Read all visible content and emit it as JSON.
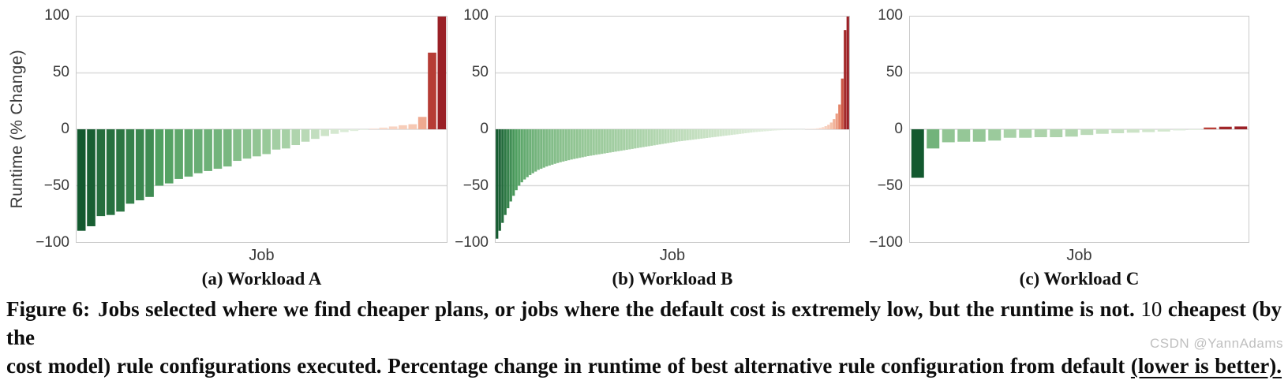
{
  "figure": {
    "y_axis_label": "Runtime (% Change)",
    "x_axis_label": "Job",
    "y_ticks": [
      {
        "value": 100,
        "label": "100"
      },
      {
        "value": 50,
        "label": "50"
      },
      {
        "value": 0,
        "label": "0"
      },
      {
        "value": -50,
        "label": "−50"
      },
      {
        "value": -100,
        "label": "−100"
      }
    ]
  },
  "caption": {
    "label": "Figure 6:",
    "line1_a": "Jobs selected where we find cheaper plans, or jobs where the default cost is extremely low, but the runtime is not. ",
    "line1_num": "10",
    "line1_b": " cheapest (by the",
    "line2_prefix": "cost model) rule configurations executed. Percentage change in runtime of best alternative rule configuration from default ",
    "line2_underlined": "(lower is better)."
  },
  "watermark": "CSDN @YannAdams",
  "colors": {
    "axis_text": "#3a3a3a",
    "grid": "#d9d9d9",
    "frame": "#c9c9c9",
    "caption_text": "#0d0d0d",
    "watermark": "#b9b9b9",
    "color_gamma": 0.5,
    "green_stops": [
      "#f4f9f2",
      "#cfe5ca",
      "#97c898",
      "#4f9f60",
      "#13592f"
    ],
    "red_stops": [
      "#fdf4ef",
      "#f5c0a8",
      "#e27b5f",
      "#c2483c",
      "#9a2026"
    ]
  },
  "chart_data": [
    {
      "type": "bar",
      "title": "(a) Workload A",
      "xlabel": "Job",
      "ylabel": "Runtime (% Change)",
      "ylim": [
        -100,
        100
      ],
      "yticks": [
        100,
        50,
        0,
        -50,
        -100
      ],
      "grid": true,
      "legend": "none",
      "bar_gap": 0.14,
      "values": [
        -90,
        -86,
        -77,
        -76,
        -73,
        -66,
        -63,
        -60,
        -50,
        -48,
        -44,
        -42,
        -39,
        -37,
        -35,
        -33,
        -28,
        -26,
        -24,
        -22,
        -18,
        -17,
        -14,
        -11,
        -8.5,
        -6,
        -4,
        -2.5,
        -1.5,
        -0.7,
        0.8,
        1.5,
        2.5,
        3.6,
        4.5,
        11,
        68,
        100
      ]
    },
    {
      "type": "bar",
      "title": "(b) Workload B",
      "xlabel": "Job",
      "ylabel": "Runtime (% Change)",
      "ylim": [
        -100,
        100
      ],
      "yticks": [
        100,
        50,
        0,
        -50,
        -100
      ],
      "grid": true,
      "legend": "none",
      "bar_gap": 0.08,
      "values": [
        -97,
        -90,
        -83,
        -76,
        -70,
        -64,
        -59,
        -54,
        -50,
        -47,
        -44.5,
        -42.5,
        -40.5,
        -39,
        -37.5,
        -36,
        -35,
        -34,
        -33,
        -32.2,
        -31.4,
        -30.6,
        -29.9,
        -29.2,
        -28.6,
        -28,
        -27.4,
        -26.8,
        -26.3,
        -25.8,
        -25.3,
        -24.8,
        -24.3,
        -23.8,
        -23.4,
        -23,
        -22.6,
        -22.2,
        -21.8,
        -21.4,
        -21,
        -20.6,
        -20.2,
        -19.8,
        -19.4,
        -19,
        -18.6,
        -18.2,
        -17.8,
        -17.4,
        -17,
        -16.6,
        -16.2,
        -15.8,
        -15.4,
        -15,
        -14.6,
        -14.2,
        -13.8,
        -13.4,
        -13,
        -12.6,
        -12.2,
        -11.8,
        -11.4,
        -11,
        -10.7,
        -10.4,
        -10.1,
        -9.8,
        -9.5,
        -9.2,
        -8.9,
        -8.6,
        -8.3,
        -8,
        -7.7,
        -7.4,
        -7.1,
        -6.8,
        -6.5,
        -6.2,
        -5.9,
        -5.6,
        -5.3,
        -5,
        -4.7,
        -4.4,
        -4.1,
        -3.8,
        -3.5,
        -3.2,
        -2.9,
        -2.6,
        -2.4,
        -2.2,
        -2,
        -1.8,
        -1.6,
        -1.4,
        -1.2,
        -1.05,
        -0.9,
        -0.8,
        -0.7,
        -0.6,
        -0.5,
        -0.4,
        -0.3,
        -0.2,
        -0.12,
        -0.06,
        0.1,
        0.2,
        0.4,
        0.6,
        0.9,
        1.3,
        1.9,
        2.8,
        4,
        6,
        9,
        14,
        22,
        45,
        88,
        100
      ]
    },
    {
      "type": "bar",
      "title": "(c) Workload C",
      "xlabel": "Job",
      "ylabel": "Runtime (% Change)",
      "ylim": [
        -100,
        100
      ],
      "yticks": [
        100,
        50,
        0,
        -50,
        -100
      ],
      "grid": true,
      "legend": "none",
      "bar_gap": 0.18,
      "values": [
        -43,
        -17,
        -11.5,
        -11,
        -11,
        -10,
        -7.5,
        -7.5,
        -7,
        -7,
        -6.5,
        -5,
        -4,
        -3.5,
        -3,
        -2.5,
        -2,
        -1,
        -0.6,
        1.6,
        2.3,
        2.5
      ]
    }
  ]
}
